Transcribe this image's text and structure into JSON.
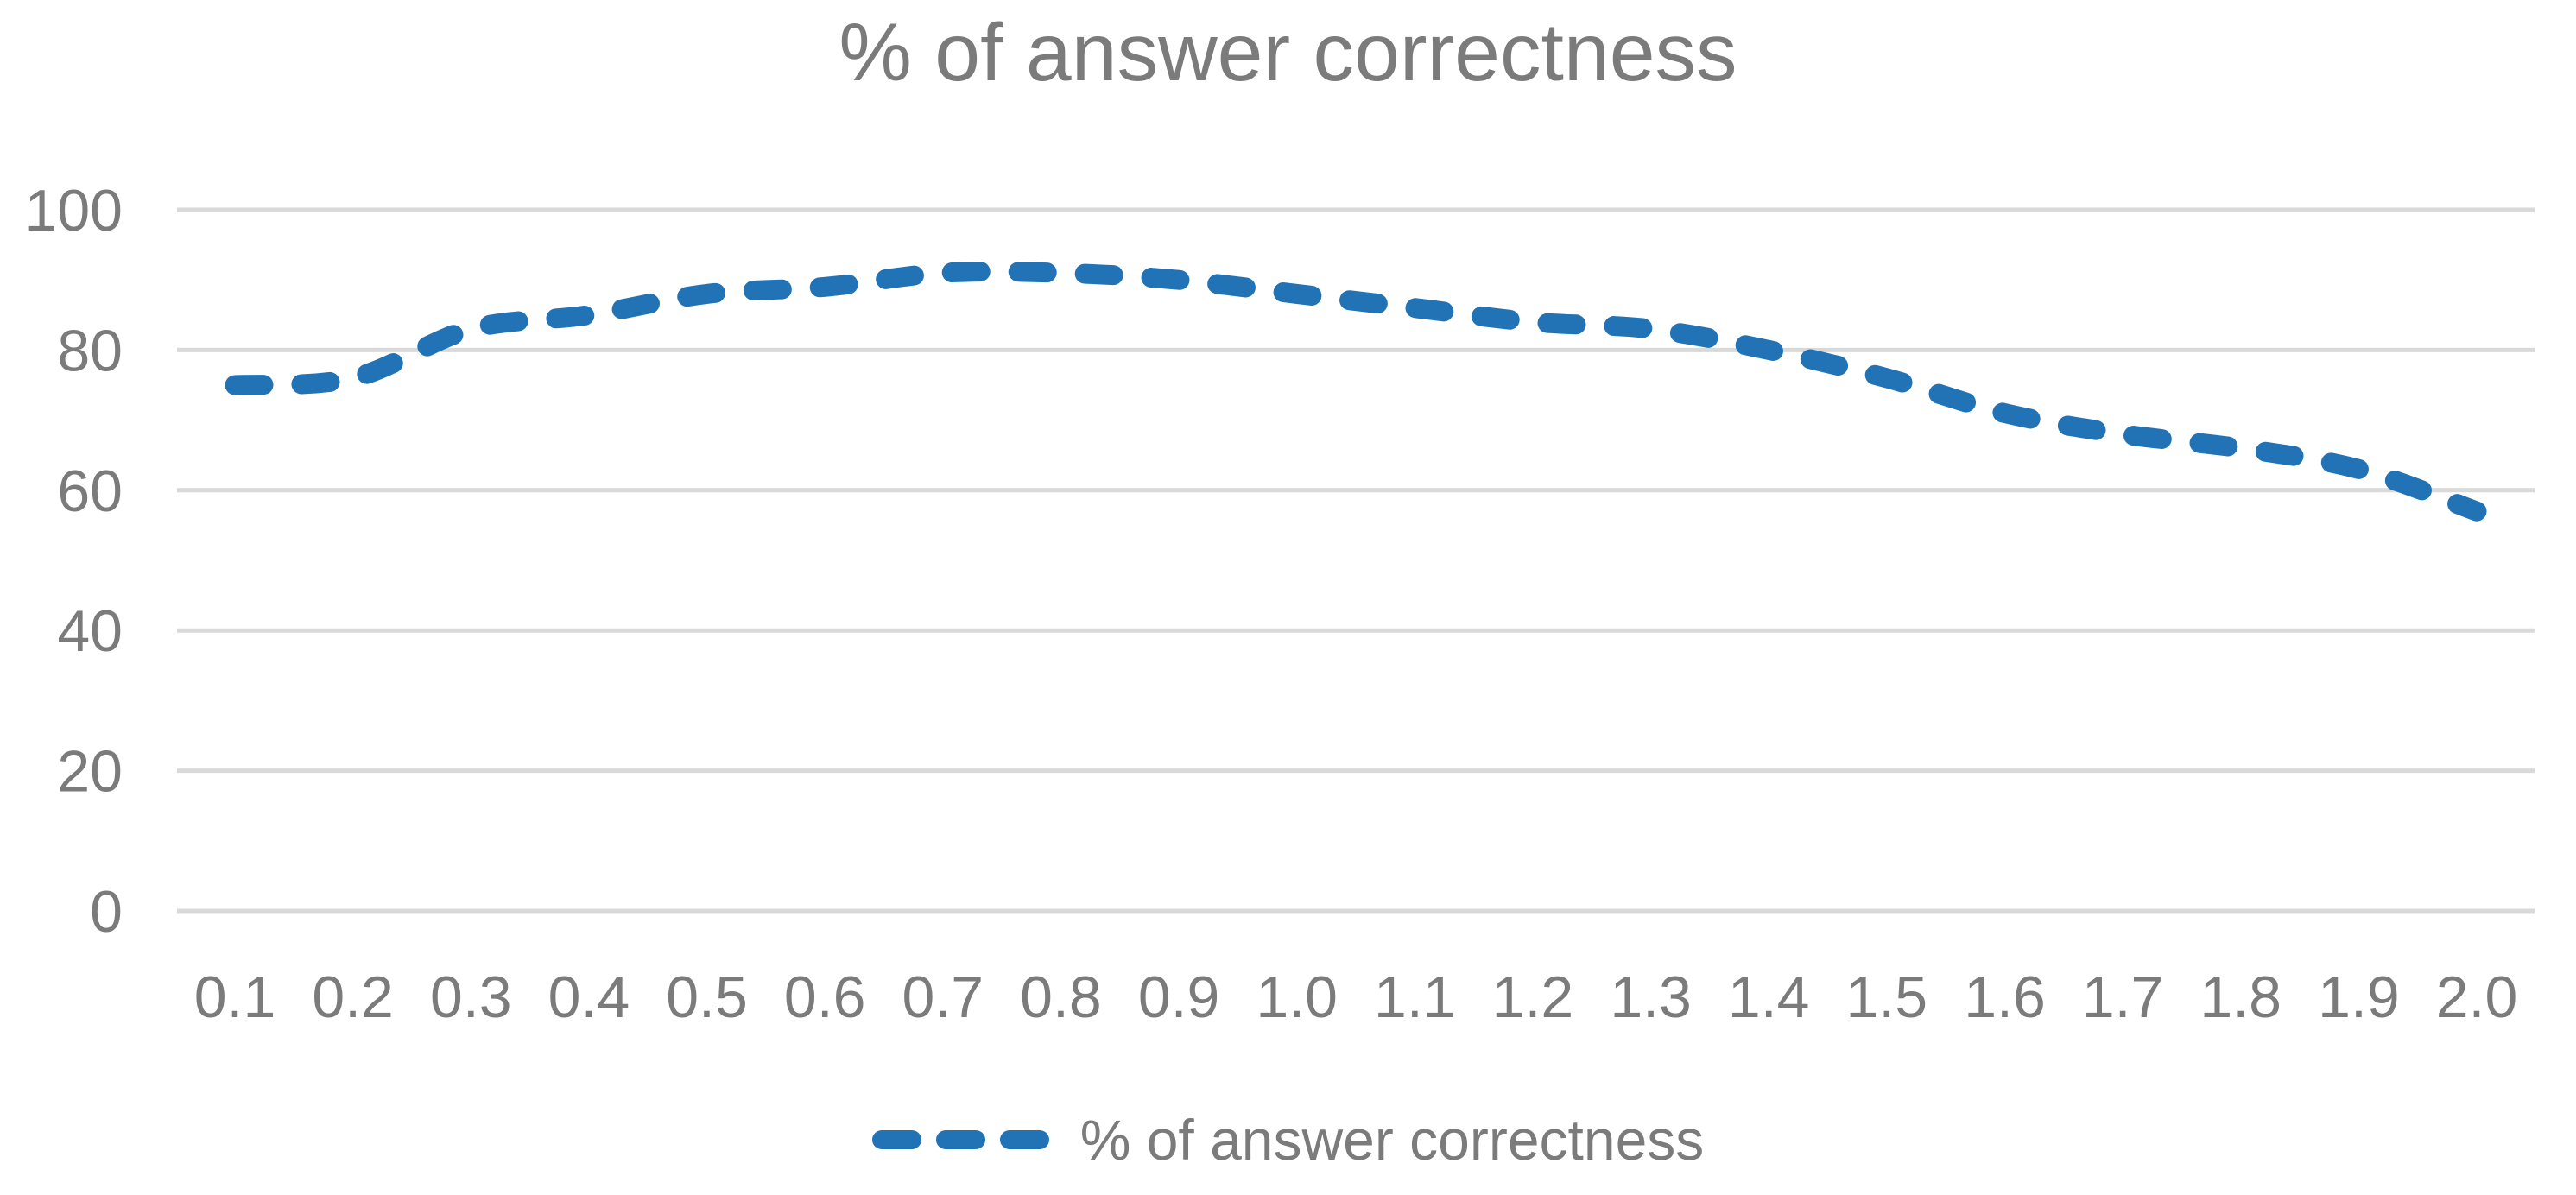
{
  "title": "% of answer correctness",
  "legend": {
    "label": "% of answer correctness"
  },
  "colors": {
    "line": "#2273b6",
    "gridline": "#d9d9d9",
    "text": "#7b7b7b",
    "background": "#ffffff"
  },
  "chart_data": {
    "type": "line",
    "title": "% of answer correctness",
    "x": [
      0.1,
      0.2,
      0.3,
      0.4,
      0.5,
      0.6,
      0.7,
      0.8,
      0.9,
      1.0,
      1.1,
      1.2,
      1.3,
      1.4,
      1.5,
      1.6,
      1.7,
      1.8,
      1.9,
      2.0
    ],
    "x_tick_labels": [
      "0.1",
      "0.2",
      "0.3",
      "0.4",
      "0.5",
      "0.6",
      "0.7",
      "0.8",
      "0.9",
      "1.0",
      "1.1",
      "1.2",
      "1.3",
      "1.4",
      "1.5",
      "1.6",
      "1.7",
      "1.8",
      "1.9",
      "2.0"
    ],
    "series": [
      {
        "name": "% of answer correctness",
        "values": [
          75,
          76,
          83,
          85,
          88,
          89,
          91,
          91,
          90,
          88,
          86,
          84,
          83,
          80,
          76,
          71,
          68,
          66,
          63,
          57
        ]
      }
    ],
    "y_ticks": [
      0,
      20,
      40,
      60,
      80,
      100
    ],
    "y_tick_labels": [
      "0",
      "20",
      "40",
      "60",
      "80",
      "100"
    ],
    "xlabel": "",
    "ylabel": "",
    "ylim": [
      0,
      100
    ],
    "grid": true,
    "line_style": "dashed",
    "smooth": true,
    "legend_position": "bottom"
  }
}
